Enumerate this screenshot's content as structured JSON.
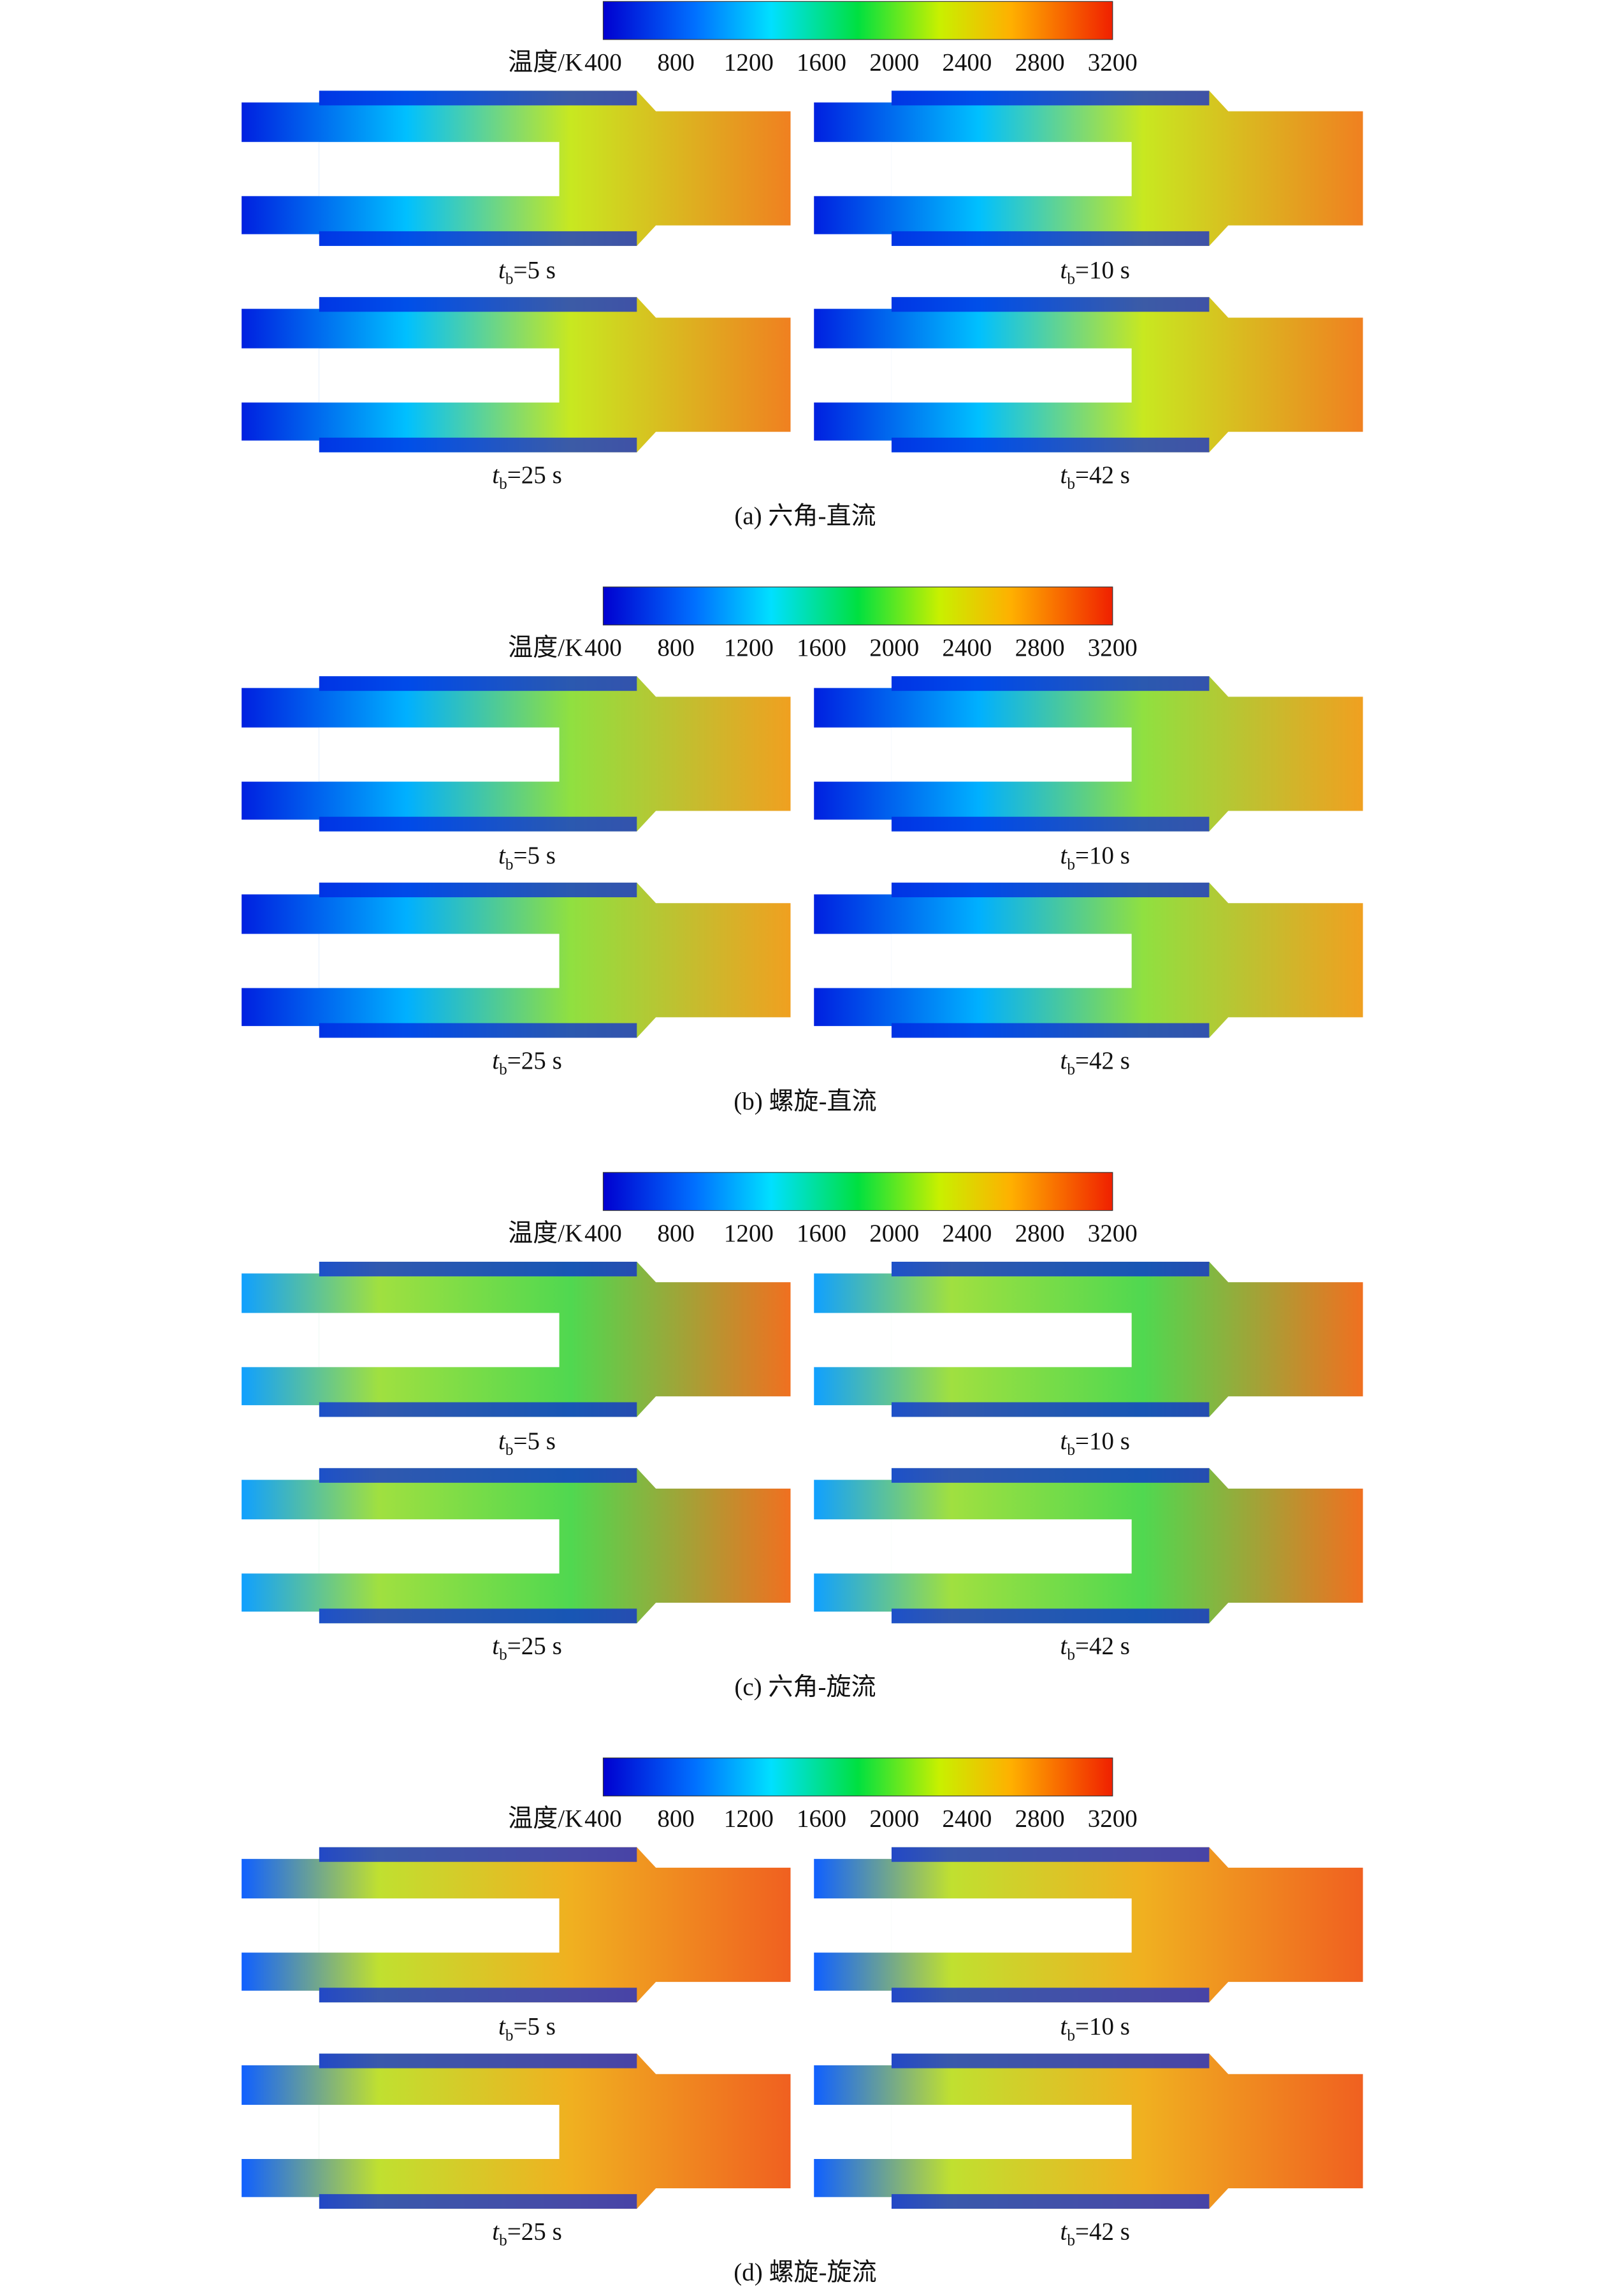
{
  "panels": [
    {
      "colorbar": {
        "label": "温度/K",
        "ticks": [
          400,
          800,
          1200,
          1600,
          2000,
          2400,
          2800,
          3200
        ]
      },
      "plots": [
        {
          "symbol": "t",
          "subscript": "b",
          "text": "=5 s"
        },
        {
          "symbol": "t",
          "subscript": "b",
          "text": "=10 s"
        },
        {
          "symbol": "t",
          "subscript": "b",
          "text": "=25 s"
        },
        {
          "symbol": "t",
          "subscript": "b",
          "text": "=42 s"
        }
      ],
      "caption": "(a) 六角-直流"
    },
    {
      "colorbar": {
        "label": "温度/K",
        "ticks": [
          400,
          800,
          1200,
          1600,
          2000,
          2400,
          2800,
          3200
        ]
      },
      "plots": [
        {
          "symbol": "t",
          "subscript": "b",
          "text": "=5 s"
        },
        {
          "symbol": "t",
          "subscript": "b",
          "text": "=10 s"
        },
        {
          "symbol": "t",
          "subscript": "b",
          "text": "=25 s"
        },
        {
          "symbol": "t",
          "subscript": "b",
          "text": "=42 s"
        }
      ],
      "caption": "(b) 螺旋-直流"
    },
    {
      "colorbar": {
        "label": "温度/K",
        "ticks": [
          400,
          800,
          1200,
          1600,
          2000,
          2400,
          2800,
          3200
        ]
      },
      "plots": [
        {
          "symbol": "t",
          "subscript": "b",
          "text": "=5 s"
        },
        {
          "symbol": "t",
          "subscript": "b",
          "text": "=10 s"
        },
        {
          "symbol": "t",
          "subscript": "b",
          "text": "=25 s"
        },
        {
          "symbol": "t",
          "subscript": "b",
          "text": "=42 s"
        }
      ],
      "caption": "(c) 六角-旋流"
    },
    {
      "colorbar": {
        "label": "温度/K",
        "ticks": [
          400,
          800,
          1200,
          1600,
          2000,
          2400,
          2800,
          3200
        ]
      },
      "plots": [
        {
          "symbol": "t",
          "subscript": "b",
          "text": "=5 s"
        },
        {
          "symbol": "t",
          "subscript": "b",
          "text": "=10 s"
        },
        {
          "symbol": "t",
          "subscript": "b",
          "text": "=25 s"
        },
        {
          "symbol": "t",
          "subscript": "b",
          "text": "=42 s"
        }
      ],
      "caption": "(d) 螺旋-旋流"
    }
  ]
}
